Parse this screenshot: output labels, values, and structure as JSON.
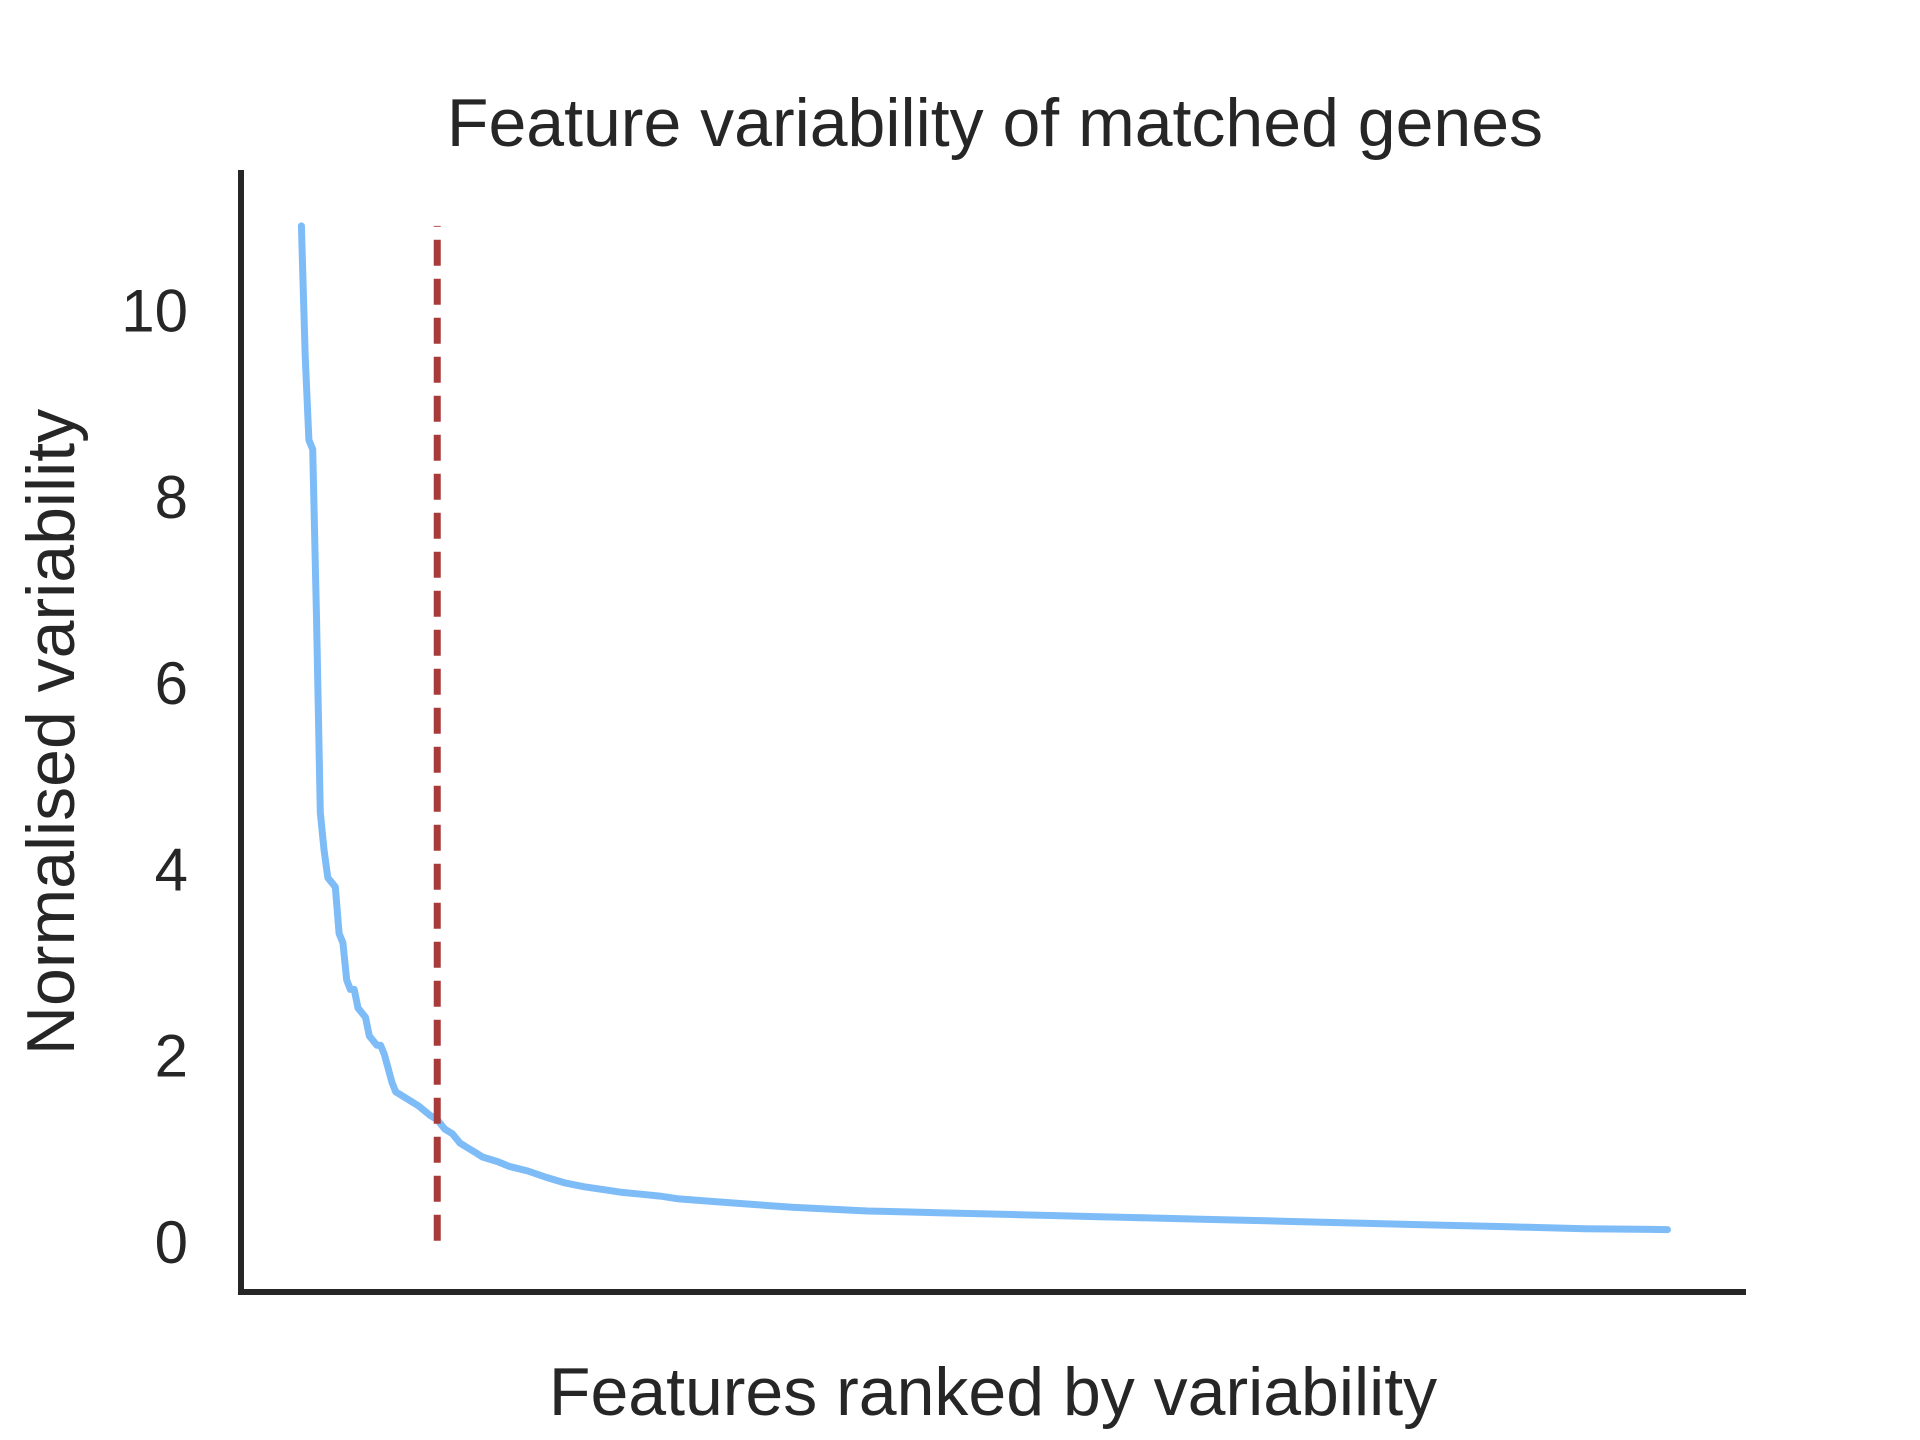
{
  "chart_data": {
    "type": "line",
    "title": "Feature variability of matched genes",
    "xlabel": "Features ranked by variability",
    "ylabel": "Normalised variability",
    "y_ticks": [
      0,
      2,
      4,
      6,
      8,
      10
    ],
    "y_tick_labels": [
      "0",
      "2",
      "4",
      "6",
      "8",
      "10"
    ],
    "ylim": [
      -0.55,
      11.5
    ],
    "xlim": [
      -16,
      382
    ],
    "x_ticks_shown": false,
    "grid": false,
    "legend": "none",
    "series": [
      {
        "color": "#7ebcf7",
        "x": [
          0,
          1,
          2,
          3,
          4,
          5,
          6,
          7,
          9,
          10,
          11,
          12,
          13,
          14,
          15,
          17,
          18,
          20,
          21,
          22,
          24,
          25,
          27,
          29,
          31,
          34,
          36,
          38,
          40,
          42,
          44,
          46,
          48,
          52,
          55,
          60,
          65,
          70,
          75,
          80,
          85,
          90,
          95,
          100,
          110,
          120,
          130,
          140,
          150,
          160,
          170,
          180,
          190,
          200,
          210,
          220,
          240,
          260,
          280,
          300,
          320,
          340,
          362
        ],
        "values": [
          10.9,
          9.5,
          8.6,
          8.5,
          6.7,
          4.6,
          4.2,
          3.9,
          3.8,
          3.3,
          3.2,
          2.8,
          2.7,
          2.7,
          2.5,
          2.4,
          2.2,
          2.1,
          2.1,
          2.0,
          1.7,
          1.6,
          1.55,
          1.5,
          1.45,
          1.35,
          1.3,
          1.2,
          1.15,
          1.05,
          1.0,
          0.95,
          0.9,
          0.85,
          0.8,
          0.75,
          0.68,
          0.62,
          0.58,
          0.55,
          0.52,
          0.5,
          0.48,
          0.45,
          0.42,
          0.39,
          0.36,
          0.34,
          0.32,
          0.31,
          0.3,
          0.29,
          0.28,
          0.27,
          0.26,
          0.25,
          0.23,
          0.21,
          0.19,
          0.17,
          0.15,
          0.13,
          0.12
        ]
      }
    ],
    "threshold": {
      "x": 36,
      "y_range": [
        0,
        10.9
      ],
      "color": "#a83a3a",
      "style": "dashed"
    }
  }
}
